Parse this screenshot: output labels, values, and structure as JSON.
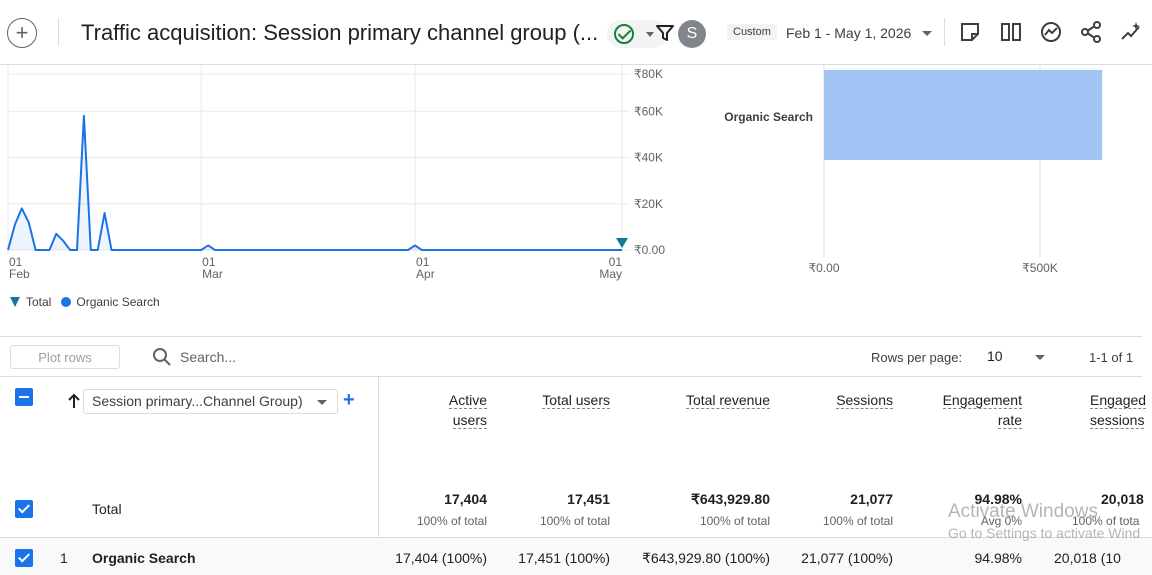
{
  "header": {
    "title": "Traffic acquisition: Session primary channel group (...",
    "avatar_letter": "S",
    "custom_badge": "Custom",
    "date_range": "Feb 1 - May 1, 2026",
    "icons": [
      "add-comparison-icon",
      "check-circle-icon",
      "filter-icon",
      "notes-icon",
      "compare-icon",
      "insights-icon",
      "share-icon",
      "sparkle-icon"
    ]
  },
  "line_chart": {
    "y_ticks": [
      "₹80K",
      "₹60K",
      "₹40K",
      "₹20K",
      "₹0.00"
    ],
    "x_ticks": [
      {
        "day": "01",
        "month": "Feb"
      },
      {
        "day": "01",
        "month": "Mar"
      },
      {
        "day": "01",
        "month": "Apr"
      },
      {
        "day": "01",
        "month": "May"
      }
    ]
  },
  "bar_chart": {
    "category": "Organic Search",
    "x_ticks": [
      "₹0.00",
      "₹500K"
    ]
  },
  "legend": [
    {
      "name": "Total",
      "icon": "pin-icon"
    },
    {
      "name": "Organic Search",
      "icon": "dot-icon"
    }
  ],
  "toolbar": {
    "plot_rows": "Plot rows",
    "search_placeholder": "Search...",
    "rows_per_page_label": "Rows per page:",
    "rows_per_page": "10",
    "pagination": "1-1 of 1"
  },
  "table": {
    "dimension": "Session primary...Channel Group)",
    "columns": [
      {
        "l1": "Active",
        "l2": "users"
      },
      {
        "l1": "Total users",
        "l2": ""
      },
      {
        "l1": "Total revenue",
        "l2": ""
      },
      {
        "l1": "Sessions",
        "l2": ""
      },
      {
        "l1": "Engagement",
        "l2": "rate"
      },
      {
        "l1": "Engaged",
        "l2": "sessions"
      }
    ],
    "total_label": "Total",
    "totals": [
      {
        "value": "17,404",
        "sub": "100% of total"
      },
      {
        "value": "17,451",
        "sub": "100% of total"
      },
      {
        "value": "₹643,929.80",
        "sub": "100% of total"
      },
      {
        "value": "21,077",
        "sub": "100% of total"
      },
      {
        "value": "94.98%",
        "sub": "Avg 0%"
      },
      {
        "value": "20,018",
        "sub": "100% of tota"
      }
    ],
    "rows": [
      {
        "index": "1",
        "dimension": "Organic Search",
        "values": [
          "17,404 (100%)",
          "17,451 (100%)",
          "₹643,929.80 (100%)",
          "21,077 (100%)",
          "94.98%",
          "20,018 (10"
        ]
      }
    ]
  },
  "watermark": {
    "line1": "Activate Windows",
    "line2": "Go to Settings to activate Wind"
  },
  "chart_data": [
    {
      "type": "line",
      "title": "",
      "xlabel": "",
      "ylabel": "",
      "ylim": [
        0,
        80000
      ],
      "x": [
        "Feb 1",
        "Feb 2",
        "Feb 3",
        "Feb 4",
        "Feb 5",
        "Feb 6",
        "Feb 7",
        "Feb 8",
        "Feb 9",
        "Feb 10",
        "Feb 11",
        "Feb 12",
        "Feb 13",
        "Feb 14",
        "Feb 15",
        "Feb 16",
        "Feb 17",
        "Feb 18",
        "Feb 19",
        "Feb 20",
        "Feb 21",
        "Feb 22",
        "Feb 23",
        "Feb 24",
        "Feb 25",
        "Feb 26",
        "Feb 27",
        "Feb 28",
        "Mar 1",
        "Mar 2",
        "Mar 3",
        "Mar 4",
        "Mar 5",
        "Mar 6",
        "Mar 7",
        "Mar 8",
        "Mar 9",
        "Mar 10",
        "Mar 11",
        "Mar 12",
        "Mar 13",
        "Mar 14",
        "Mar 15",
        "Mar 16",
        "Mar 17",
        "Mar 18",
        "Mar 19",
        "Mar 20",
        "Mar 21",
        "Mar 22",
        "Mar 23",
        "Mar 24",
        "Mar 25",
        "Mar 26",
        "Mar 27",
        "Mar 28",
        "Mar 29",
        "Mar 30",
        "Mar 31",
        "Apr 1",
        "Apr 2",
        "Apr 3",
        "Apr 4",
        "Apr 5",
        "Apr 6",
        "Apr 7",
        "Apr 8",
        "Apr 9",
        "Apr 10",
        "Apr 11",
        "Apr 12",
        "Apr 13",
        "Apr 14",
        "Apr 15",
        "Apr 16",
        "Apr 17",
        "Apr 18",
        "Apr 19",
        "Apr 20",
        "Apr 21",
        "Apr 22",
        "Apr 23",
        "Apr 24",
        "Apr 25",
        "Apr 26",
        "Apr 27",
        "Apr 28",
        "Apr 29",
        "Apr 30",
        "May 1"
      ],
      "series": [
        {
          "name": "Organic Search",
          "values": [
            0,
            11000,
            18000,
            12000,
            0,
            0,
            0,
            7000,
            4000,
            0,
            0,
            58000,
            0,
            0,
            16000,
            0,
            0,
            0,
            0,
            0,
            0,
            0,
            0,
            0,
            0,
            0,
            0,
            0,
            0,
            2000,
            0,
            0,
            0,
            0,
            0,
            0,
            0,
            0,
            0,
            0,
            0,
            0,
            0,
            0,
            0,
            0,
            0,
            0,
            0,
            0,
            0,
            0,
            0,
            0,
            0,
            0,
            0,
            0,
            0,
            2000,
            0,
            0,
            0,
            0,
            0,
            0,
            0,
            0,
            0,
            0,
            0,
            0,
            0,
            0,
            0,
            0,
            0,
            0,
            0,
            0,
            0,
            0,
            0,
            0,
            0,
            0,
            0,
            0,
            0,
            0
          ]
        }
      ]
    },
    {
      "type": "bar",
      "orientation": "horizontal",
      "categories": [
        "Organic Search"
      ],
      "values": [
        643929.8
      ],
      "xlim": [
        0,
        650000
      ]
    }
  ]
}
